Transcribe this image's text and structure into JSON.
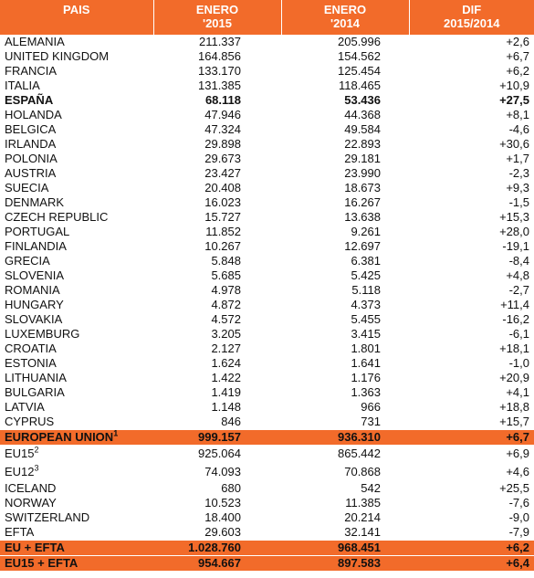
{
  "header": {
    "col0": "PAIS",
    "col1_l1": "ENERO",
    "col1_l2": "'2015",
    "col2_l1": "ENERO",
    "col2_l2": "'2014",
    "col3_l1": "DIF",
    "col3_l2": "2015/2014"
  },
  "highlight_color": "#f26b2a",
  "rows": [
    {
      "name": "ALEMANIA",
      "v2015": "211.337",
      "v2014": "205.996",
      "dif": "+2,6"
    },
    {
      "name": "UNITED KINGDOM",
      "v2015": "164.856",
      "v2014": "154.562",
      "dif": "+6,7"
    },
    {
      "name": "FRANCIA",
      "v2015": "133.170",
      "v2014": "125.454",
      "dif": "+6,2"
    },
    {
      "name": "ITALIA",
      "v2015": "131.385",
      "v2014": "118.465",
      "dif": "+10,9"
    },
    {
      "name": "ESPAÑA",
      "v2015": "68.118",
      "v2014": "53.436",
      "dif": "+27,5",
      "style": "bold"
    },
    {
      "name": "HOLANDA",
      "v2015": "47.946",
      "v2014": "44.368",
      "dif": "+8,1"
    },
    {
      "name": "BELGICA",
      "v2015": "47.324",
      "v2014": "49.584",
      "dif": "-4,6"
    },
    {
      "name": "IRLANDA",
      "v2015": "29.898",
      "v2014": "22.893",
      "dif": "+30,6"
    },
    {
      "name": "POLONIA",
      "v2015": "29.673",
      "v2014": "29.181",
      "dif": "+1,7"
    },
    {
      "name": "AUSTRIA",
      "v2015": "23.427",
      "v2014": "23.990",
      "dif": "-2,3"
    },
    {
      "name": "SUECIA",
      "v2015": "20.408",
      "v2014": "18.673",
      "dif": "+9,3"
    },
    {
      "name": "DENMARK",
      "v2015": "16.023",
      "v2014": "16.267",
      "dif": "-1,5"
    },
    {
      "name": "CZECH REPUBLIC",
      "v2015": "15.727",
      "v2014": "13.638",
      "dif": "+15,3"
    },
    {
      "name": "PORTUGAL",
      "v2015": "11.852",
      "v2014": "9.261",
      "dif": "+28,0"
    },
    {
      "name": "FINLANDIA",
      "v2015": "10.267",
      "v2014": "12.697",
      "dif": "-19,1"
    },
    {
      "name": "GRECIA",
      "v2015": "5.848",
      "v2014": "6.381",
      "dif": "-8,4"
    },
    {
      "name": "SLOVENIA",
      "v2015": "5.685",
      "v2014": "5.425",
      "dif": "+4,8"
    },
    {
      "name": "ROMANIA",
      "v2015": "4.978",
      "v2014": "5.118",
      "dif": "-2,7"
    },
    {
      "name": "HUNGARY",
      "v2015": "4.872",
      "v2014": "4.373",
      "dif": "+11,4"
    },
    {
      "name": "SLOVAKIA",
      "v2015": "4.572",
      "v2014": "5.455",
      "dif": "-16,2"
    },
    {
      "name": "LUXEMBURG",
      "v2015": "3.205",
      "v2014": "3.415",
      "dif": "-6,1"
    },
    {
      "name": "CROATIA",
      "v2015": "2.127",
      "v2014": "1.801",
      "dif": "+18,1"
    },
    {
      "name": "ESTONIA",
      "v2015": "1.624",
      "v2014": "1.641",
      "dif": "-1,0"
    },
    {
      "name": "LITHUANIA",
      "v2015": "1.422",
      "v2014": "1.176",
      "dif": "+20,9"
    },
    {
      "name": "BULGARIA",
      "v2015": "1.419",
      "v2014": "1.363",
      "dif": "+4,1"
    },
    {
      "name": "LATVIA",
      "v2015": "1.148",
      "v2014": "966",
      "dif": "+18,8"
    },
    {
      "name": "CYPRUS",
      "v2015": "846",
      "v2014": "731",
      "dif": "+15,7"
    },
    {
      "name": "EUROPEAN UNION",
      "sup": "1",
      "v2015": "999.157",
      "v2014": "936.310",
      "dif": "+6,7",
      "style": "highlight"
    },
    {
      "name": "EU15",
      "sup": "2",
      "v2015": "925.064",
      "v2014": "865.442",
      "dif": "+6,9",
      "style": "tall"
    },
    {
      "name": "EU12",
      "sup": "3",
      "v2015": "74.093",
      "v2014": "70.868",
      "dif": "+4,6",
      "style": "tall"
    },
    {
      "name": "ICELAND",
      "v2015": "680",
      "v2014": "542",
      "dif": "+25,5"
    },
    {
      "name": "NORWAY",
      "v2015": "10.523",
      "v2014": "11.385",
      "dif": "-7,6"
    },
    {
      "name": "SWITZERLAND",
      "v2015": "18.400",
      "v2014": "20.214",
      "dif": "-9,0"
    },
    {
      "name": "EFTA",
      "v2015": "29.603",
      "v2014": "32.141",
      "dif": "-7,9"
    },
    {
      "name": "EU + EFTA",
      "v2015": "1.028.760",
      "v2014": "968.451",
      "dif": "+6,2",
      "style": "highlight"
    },
    {
      "name": "EU15 + EFTA",
      "v2015": "954.667",
      "v2014": "897.583",
      "dif": "+6,4",
      "style": "highlight"
    }
  ]
}
